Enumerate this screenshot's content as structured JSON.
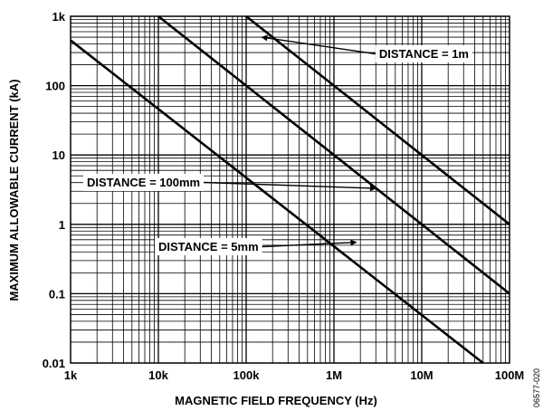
{
  "chart_data": {
    "type": "line",
    "x_scale": "log",
    "y_scale": "log",
    "xlim": [
      1000,
      100000000
    ],
    "ylim": [
      0.01,
      1000
    ],
    "grid": true,
    "xlabel": "MAGNETIC FIELD FREQUENCY (Hz)",
    "ylabel": "MAXIMUM ALLOWABLE CURRENT (kA)",
    "x_ticks": [
      {
        "value": 1000,
        "label": "1k"
      },
      {
        "value": 10000,
        "label": "10k"
      },
      {
        "value": 100000,
        "label": "100k"
      },
      {
        "value": 1000000,
        "label": "1M"
      },
      {
        "value": 10000000,
        "label": "10M"
      },
      {
        "value": 100000000,
        "label": "100M"
      }
    ],
    "y_ticks": [
      {
        "value": 0.01,
        "label": "0.01"
      },
      {
        "value": 0.1,
        "label": "0.1"
      },
      {
        "value": 1,
        "label": "1"
      },
      {
        "value": 10,
        "label": "10"
      },
      {
        "value": 100,
        "label": "100"
      },
      {
        "value": 1000,
        "label": "1k"
      }
    ],
    "series": [
      {
        "name": "DISTANCE = 1m",
        "x": [
          100000,
          100000000
        ],
        "y": [
          1000,
          1
        ]
      },
      {
        "name": "DISTANCE = 100mm",
        "x": [
          10000,
          100000000
        ],
        "y": [
          1000,
          0.1
        ]
      },
      {
        "name": "DISTANCE = 5mm",
        "x": [
          1000,
          50000000
        ],
        "y": [
          450,
          0.01
        ]
      }
    ],
    "annotations": [
      {
        "text": "DISTANCE = 1m",
        "arrow_to": [
          150000,
          500
        ]
      },
      {
        "text": "DISTANCE = 100mm",
        "arrow_to": [
          3000000,
          3.3
        ]
      },
      {
        "text": "DISTANCE = 5mm",
        "arrow_to": [
          1800000,
          0.55
        ]
      }
    ],
    "figure_id": "06577-020"
  }
}
